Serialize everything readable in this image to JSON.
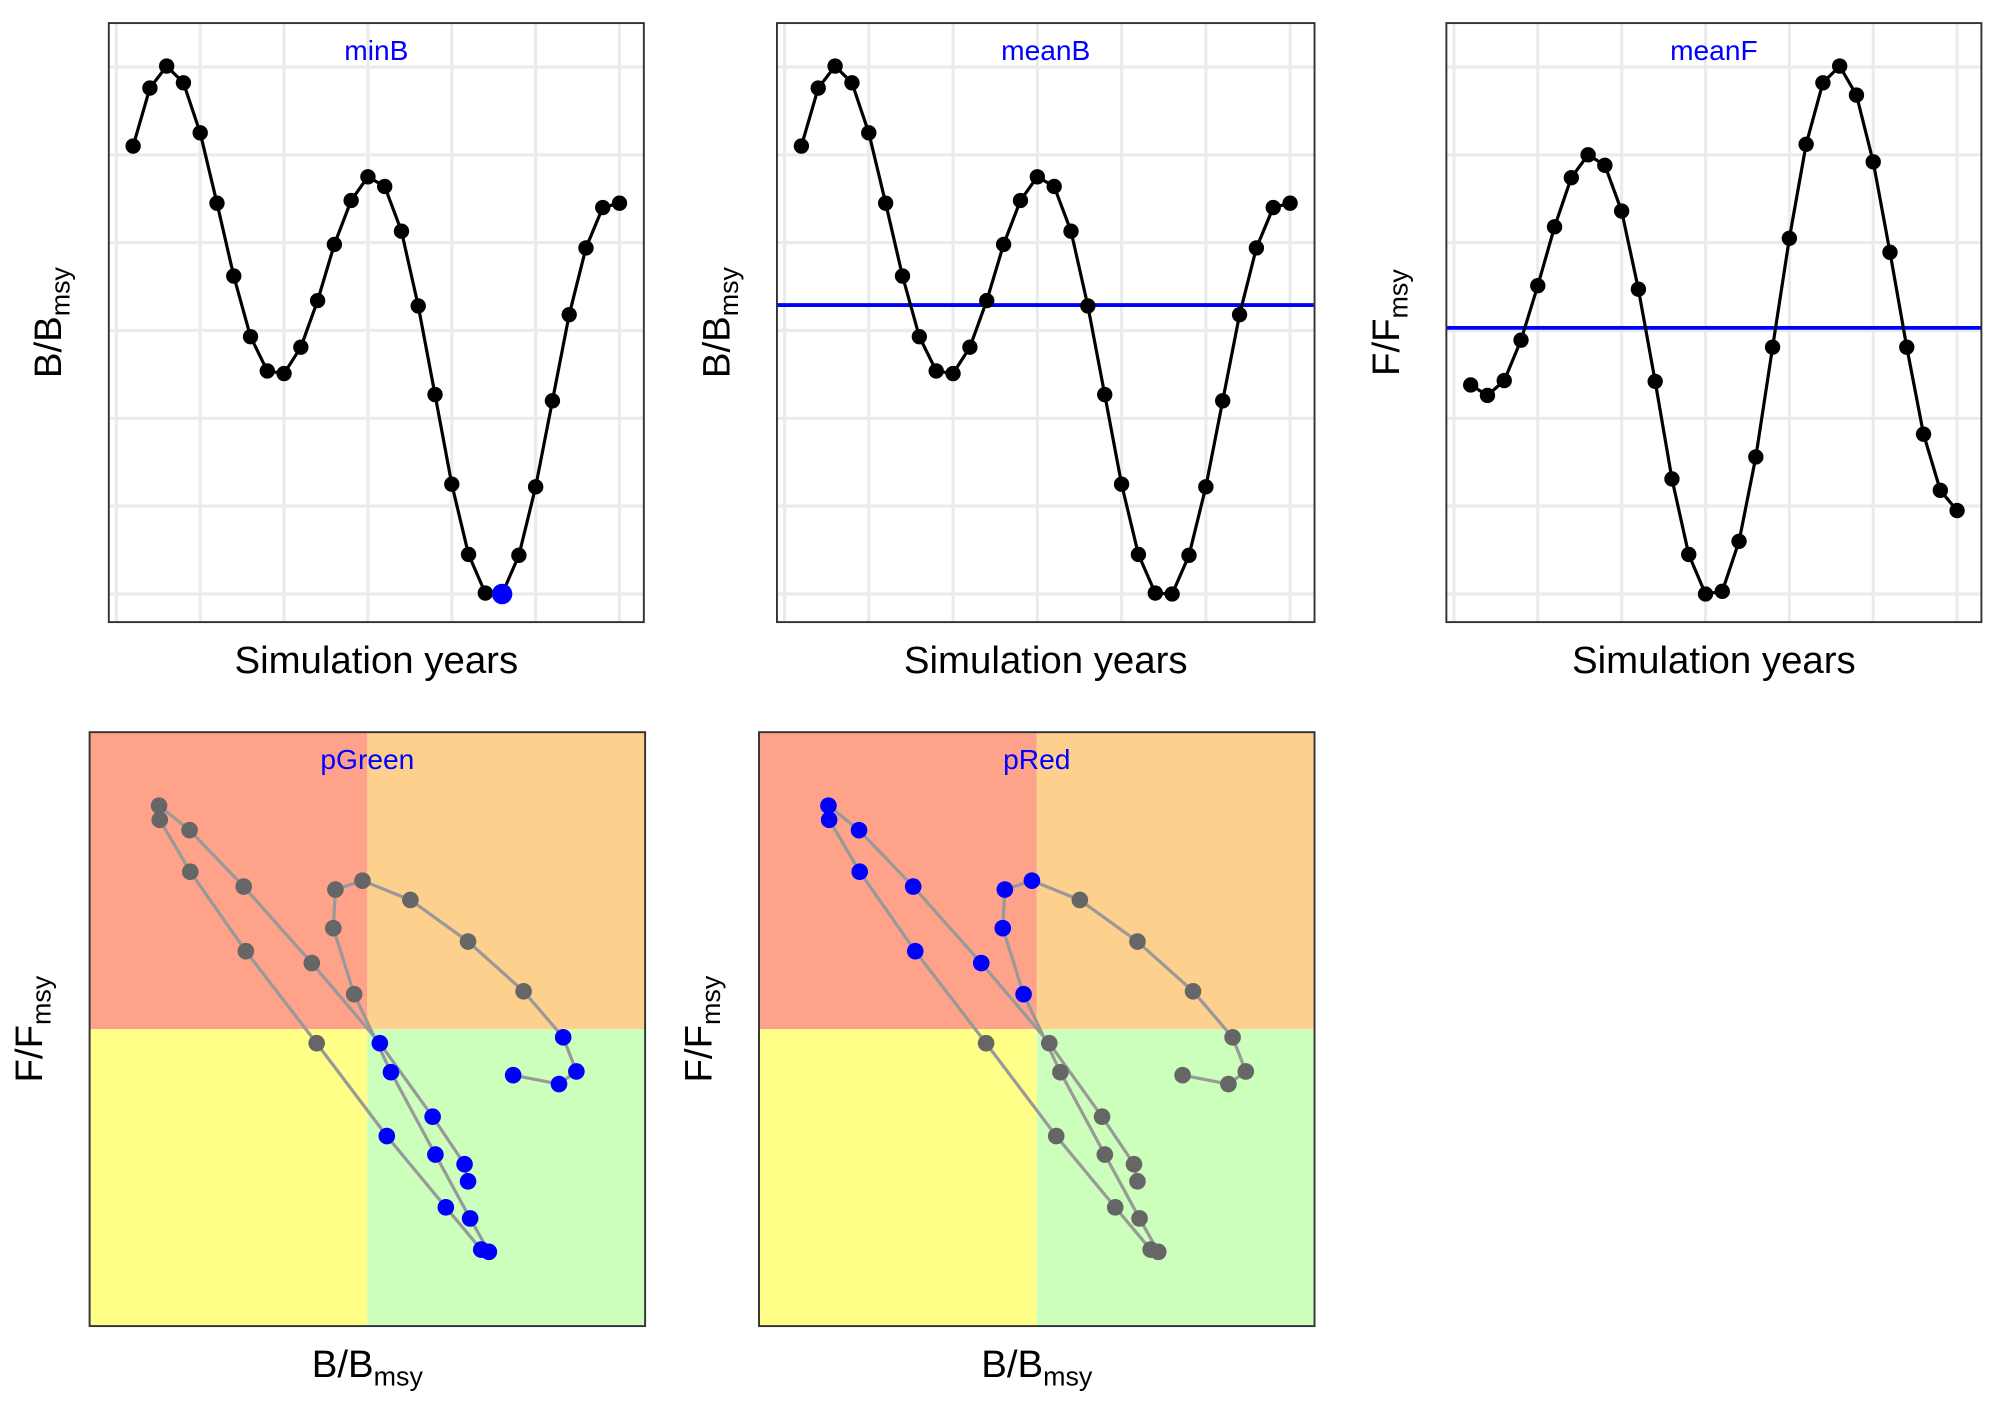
{
  "chart_data": [
    {
      "type": "line",
      "title": "minB",
      "title_color": "#0000ff",
      "xlabel": "Simulation years",
      "ylabel": [
        "B/B",
        "msy"
      ],
      "x": [
        1,
        2,
        3,
        4,
        5,
        6,
        7,
        8,
        9,
        10,
        11,
        12,
        13,
        14,
        15,
        16,
        17,
        18,
        19,
        20,
        21,
        22,
        23,
        24,
        25,
        26,
        27,
        28,
        29,
        30
      ],
      "values": [
        5.1,
        5.76,
        6.01,
        5.82,
        5.25,
        4.45,
        3.62,
        2.93,
        2.54,
        2.51,
        2.81,
        3.34,
        3.98,
        4.48,
        4.75,
        4.64,
        4.13,
        3.28,
        2.27,
        1.25,
        0.45,
        0.01,
        0,
        0.44,
        1.22,
        2.2,
        3.18,
        3.94,
        4.4,
        4.45
      ],
      "color": "#000000",
      "highlight": "min",
      "highlight_color": "#0000ff",
      "xlim": [
        -0.45,
        31.45
      ],
      "ylim": [
        -0.32,
        6.5
      ],
      "xticks": [
        0,
        5,
        10,
        15,
        20,
        25,
        30
      ],
      "yticks": [
        0,
        1,
        2,
        3,
        4,
        5,
        6
      ],
      "grid": true
    },
    {
      "type": "line",
      "title": "meanB",
      "title_color": "#0000ff",
      "xlabel": "Simulation years",
      "ylabel": [
        "B/B",
        "msy"
      ],
      "x": [
        1,
        2,
        3,
        4,
        5,
        6,
        7,
        8,
        9,
        10,
        11,
        12,
        13,
        14,
        15,
        16,
        17,
        18,
        19,
        20,
        21,
        22,
        23,
        24,
        25,
        26,
        27,
        28,
        29,
        30
      ],
      "values": [
        5.1,
        5.76,
        6.01,
        5.82,
        5.25,
        4.45,
        3.62,
        2.93,
        2.54,
        2.51,
        2.81,
        3.34,
        3.98,
        4.48,
        4.75,
        4.64,
        4.13,
        3.28,
        2.27,
        1.25,
        0.45,
        0.01,
        0,
        0.44,
        1.22,
        2.2,
        3.18,
        3.94,
        4.4,
        4.45
      ],
      "color": "#000000",
      "reference_line": {
        "value": 3.29,
        "color": "#0000ff"
      },
      "xlim": [
        -0.45,
        31.45
      ],
      "ylim": [
        -0.32,
        6.5
      ],
      "xticks": [
        0,
        5,
        10,
        15,
        20,
        25,
        30
      ],
      "yticks": [
        0,
        1,
        2,
        3,
        4,
        5,
        6
      ],
      "grid": true
    },
    {
      "type": "line",
      "title": "meanF",
      "title_color": "#0000ff",
      "xlabel": "Simulation years",
      "ylabel": [
        "F/F",
        "msy"
      ],
      "x": [
        1,
        2,
        3,
        4,
        5,
        6,
        7,
        8,
        9,
        10,
        11,
        12,
        13,
        14,
        15,
        16,
        17,
        18,
        19,
        20,
        21,
        22,
        23,
        24,
        25,
        26,
        27,
        28,
        29,
        30
      ],
      "values": [
        2.38,
        2.26,
        2.43,
        2.89,
        3.51,
        4.18,
        4.74,
        5.0,
        4.88,
        4.36,
        3.47,
        2.42,
        1.31,
        0.45,
        0,
        0.03,
        0.6,
        1.56,
        2.81,
        4.05,
        5.12,
        5.82,
        6.01,
        5.68,
        4.92,
        3.89,
        2.81,
        1.82,
        1.18,
        0.95
      ],
      "color": "#000000",
      "reference_line": {
        "value": 3.03,
        "color": "#0000ff"
      },
      "xlim": [
        -0.45,
        31.45
      ],
      "ylim": [
        -0.32,
        6.5
      ],
      "xticks": [
        0,
        5,
        10,
        15,
        20,
        25,
        30
      ],
      "yticks": [
        0,
        1,
        2,
        3,
        4,
        5,
        6
      ],
      "grid": true
    },
    {
      "type": "scatter",
      "title": "pGreen",
      "title_color": "#0000ff",
      "xlabel": [
        "B/B",
        "msy"
      ],
      "ylabel": [
        "F/F",
        "msy"
      ],
      "x": [
        5.1,
        5.76,
        6.01,
        5.82,
        5.25,
        4.45,
        3.62,
        2.93,
        2.54,
        2.51,
        2.81,
        3.34,
        3.98,
        4.48,
        4.75,
        4.64,
        4.13,
        3.28,
        2.27,
        1.25,
        0.45,
        0.01,
        0,
        0.44,
        1.22,
        2.2,
        3.18,
        3.94,
        4.4,
        4.45
      ],
      "values": [
        2.38,
        2.26,
        2.43,
        2.89,
        3.51,
        4.18,
        4.74,
        5.0,
        4.88,
        4.36,
        3.47,
        2.42,
        1.31,
        0.45,
        0,
        0.03,
        0.6,
        1.56,
        2.81,
        4.05,
        5.12,
        5.82,
        6.01,
        5.68,
        4.92,
        3.89,
        2.81,
        1.82,
        1.18,
        0.95
      ],
      "color": "#666666",
      "line_color": "#999999",
      "highlight": "green",
      "highlight_color": "#0000ff",
      "xref": 3,
      "yref": 3,
      "quadrant_colors": {
        "upper_left": "#fea38a",
        "upper_right": "#fed08e",
        "lower_left": "#ffff88",
        "lower_right": "#ccffbb"
      },
      "xlim": [
        -1,
        7
      ],
      "ylim": [
        -1,
        7
      ]
    },
    {
      "type": "scatter",
      "title": "pRed",
      "title_color": "#0000ff",
      "xlabel": [
        "B/B",
        "msy"
      ],
      "ylabel": [
        "F/F",
        "msy"
      ],
      "x": [
        5.1,
        5.76,
        6.01,
        5.82,
        5.25,
        4.45,
        3.62,
        2.93,
        2.54,
        2.51,
        2.81,
        3.34,
        3.98,
        4.48,
        4.75,
        4.64,
        4.13,
        3.28,
        2.27,
        1.25,
        0.45,
        0.01,
        0,
        0.44,
        1.22,
        2.2,
        3.18,
        3.94,
        4.4,
        4.45
      ],
      "values": [
        2.38,
        2.26,
        2.43,
        2.89,
        3.51,
        4.18,
        4.74,
        5.0,
        4.88,
        4.36,
        3.47,
        2.42,
        1.31,
        0.45,
        0,
        0.03,
        0.6,
        1.56,
        2.81,
        4.05,
        5.12,
        5.82,
        6.01,
        5.68,
        4.92,
        3.89,
        2.81,
        1.82,
        1.18,
        0.95
      ],
      "color": "#666666",
      "line_color": "#999999",
      "highlight": "red",
      "highlight_color": "#0000ff",
      "xref": 3,
      "yref": 3,
      "quadrant_colors": {
        "upper_left": "#fea38a",
        "upper_right": "#fed08e",
        "lower_left": "#ffff88",
        "lower_right": "#ccffbb"
      },
      "xlim": [
        -1,
        7
      ],
      "ylim": [
        -1,
        7
      ]
    }
  ]
}
